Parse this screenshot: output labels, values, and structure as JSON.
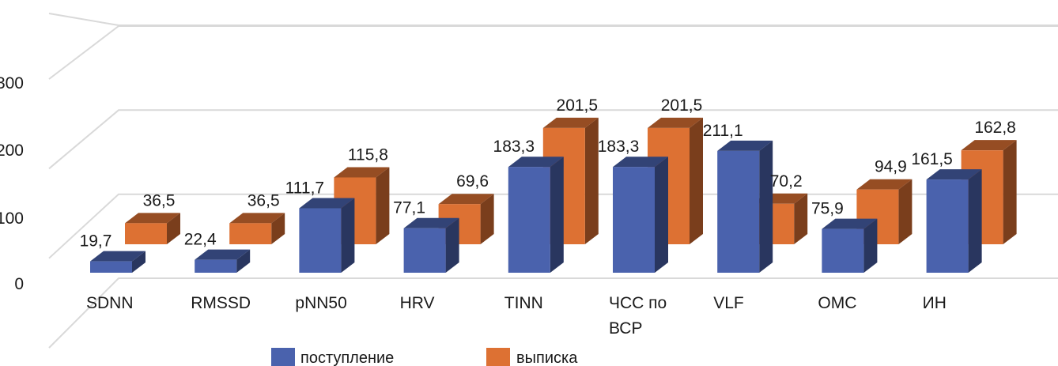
{
  "chart_data": {
    "type": "bar",
    "style": "3d-clustered-column",
    "title": "",
    "xlabel": "",
    "ylabel": "",
    "ylim": [
      0,
      300
    ],
    "yticks": [
      "0",
      "100",
      "200",
      "300"
    ],
    "grid": true,
    "legend_position": "bottom",
    "categories": [
      "SDNN",
      "RMSSD",
      "pNN50",
      "HRV",
      "TINN",
      "ЧСС по\nВСР",
      "VLF",
      "ОМС",
      "ИН"
    ],
    "series": [
      {
        "name": "поступление",
        "color": "#4a62ad",
        "values": [
          19.7,
          22.4,
          111.7,
          77.1,
          183.3,
          183.3,
          211.1,
          75.9,
          161.5
        ],
        "labels": [
          "19,7",
          "22,4",
          "111,7",
          "77,1",
          "183,3",
          "183,3",
          "211,1",
          "75,9",
          "161,5"
        ]
      },
      {
        "name": "выписка",
        "color": "#dd7133",
        "values": [
          36.5,
          36.5,
          115.8,
          69.6,
          201.5,
          201.5,
          70.2,
          94.9,
          162.8
        ],
        "labels": [
          "36,5",
          "36,5",
          "115,8",
          "69,6",
          "201,5",
          "201,5",
          "70,2",
          "94,9",
          "162,8"
        ]
      }
    ]
  }
}
